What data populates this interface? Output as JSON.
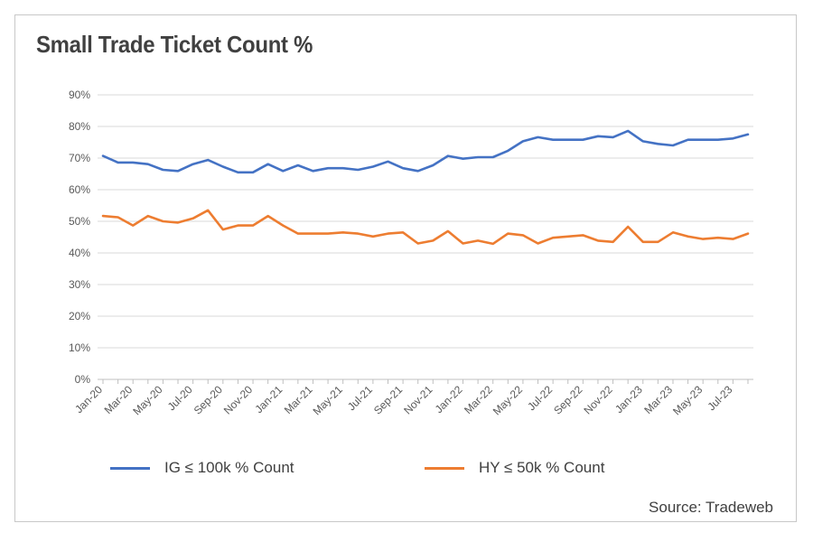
{
  "title": "Small Trade Ticket Count %",
  "source": "Source: Tradeweb",
  "chart_data": {
    "type": "line",
    "title": "Small Trade Ticket Count %",
    "ylim": [
      0,
      90
    ],
    "yticks": [
      "0%",
      "10%",
      "20%",
      "30%",
      "40%",
      "50%",
      "60%",
      "70%",
      "80%",
      "90%"
    ],
    "grid": "horizontal",
    "legend_position": "bottom",
    "x": [
      "Jan-20",
      "Feb-20",
      "Mar-20",
      "Apr-20",
      "May-20",
      "Jun-20",
      "Jul-20",
      "Aug-20",
      "Sep-20",
      "Oct-20",
      "Nov-20",
      "Dec-20",
      "Jan-21",
      "Feb-21",
      "Mar-21",
      "Apr-21",
      "May-21",
      "Jun-21",
      "Jul-21",
      "Aug-21",
      "Sep-21",
      "Oct-21",
      "Nov-21",
      "Dec-21",
      "Jan-22",
      "Feb-22",
      "Mar-22",
      "Apr-22",
      "May-22",
      "Jun-22",
      "Jul-22",
      "Aug-22",
      "Sep-22",
      "Oct-22",
      "Nov-22",
      "Dec-22",
      "Jan-23",
      "Feb-23",
      "Mar-23",
      "Apr-23",
      "May-23",
      "Jun-23",
      "Jul-23",
      "Aug-23"
    ],
    "xtick_labels": [
      "Jan-20",
      "Mar-20",
      "May-20",
      "Jul-20",
      "Sep-20",
      "Nov-20",
      "Jan-21",
      "Mar-21",
      "May-21",
      "Jul-21",
      "Sep-21",
      "Nov-21",
      "Jan-22",
      "Mar-22",
      "May-22",
      "Jul-22",
      "Sep-22",
      "Nov-22",
      "Jan-23",
      "Mar-23",
      "May-23",
      "Jul-23"
    ],
    "series": [
      {
        "name": "IG ≤ 100k % Count",
        "color": "#4472c4",
        "values": [
          70.7,
          68.6,
          68.6,
          68.1,
          66.3,
          65.9,
          68.1,
          69.4,
          67.3,
          65.5,
          65.5,
          68.1,
          65.9,
          67.7,
          65.9,
          66.8,
          66.8,
          66.3,
          67.3,
          68.9,
          66.8,
          65.9,
          67.7,
          70.7,
          69.8,
          70.3,
          70.3,
          72.3,
          75.3,
          76.6,
          75.8,
          75.8,
          75.8,
          76.9,
          76.6,
          78.6,
          75.3,
          74.5,
          74.0,
          75.8,
          75.8,
          75.8,
          76.2,
          77.5
        ]
      },
      {
        "name": "HY ≤ 50k % Count",
        "color": "#ed7d31",
        "values": [
          51.7,
          51.3,
          48.7,
          51.7,
          50.0,
          49.6,
          50.9,
          53.5,
          47.4,
          48.7,
          48.7,
          51.7,
          48.7,
          46.1,
          46.1,
          46.1,
          46.5,
          46.1,
          45.2,
          46.1,
          46.5,
          43.0,
          43.9,
          46.9,
          43.0,
          43.9,
          42.9,
          46.1,
          45.6,
          43.0,
          44.8,
          45.2,
          45.6,
          43.9,
          43.5,
          48.3,
          43.5,
          43.5,
          46.5,
          45.2,
          44.4,
          44.8,
          44.4,
          46.1
        ]
      }
    ]
  }
}
